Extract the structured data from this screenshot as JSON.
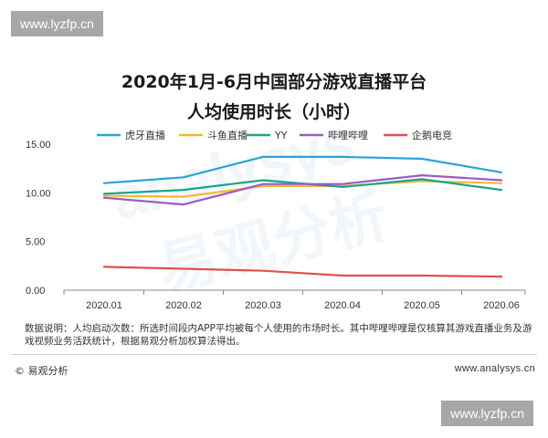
{
  "watermark": {
    "top": "www.lyzfp.cn",
    "bottom": "www.lyzfp.cn"
  },
  "chart_data": {
    "type": "line",
    "title": "2020年1月-6月中国部分游戏直播平台",
    "subtitle": "人均使用时长（小时）",
    "categories": [
      "2020.01",
      "2020.02",
      "2020.03",
      "2020.04",
      "2020.05",
      "2020.06"
    ],
    "y_ticks": [
      "0.00",
      "5.00",
      "10.00",
      "15.00"
    ],
    "ylim": [
      0,
      15
    ],
    "grid": false,
    "legend_position": "top",
    "series": [
      {
        "name": "虎牙直播",
        "color": "#29a3d9",
        "values": [
          11.0,
          11.6,
          13.7,
          13.7,
          13.5,
          12.1
        ]
      },
      {
        "name": "斗鱼直播",
        "color": "#f2b92d",
        "values": [
          9.7,
          9.6,
          10.7,
          10.7,
          11.2,
          11.0
        ]
      },
      {
        "name": "YY",
        "color": "#1aa68a",
        "values": [
          9.9,
          10.3,
          11.3,
          10.6,
          11.4,
          10.3
        ]
      },
      {
        "name": "哔哩哔哩",
        "color": "#9b59c9",
        "values": [
          9.5,
          8.8,
          10.9,
          10.9,
          11.8,
          11.3
        ]
      },
      {
        "name": "企鹅电竞",
        "color": "#e0504a",
        "values": [
          2.4,
          2.2,
          2.0,
          1.5,
          1.5,
          1.4
        ]
      }
    ]
  },
  "note": "数据说明：人均启动次数：所选时间段内APP平均被每个人使用的市场时长。其中哔哩哔哩是仅核算其游戏直播业务及游戏视频业务活跃统计，根据易观分析加权算法得出。",
  "footer": {
    "brand": "© 易观分析",
    "site": "www.analysys.cn"
  },
  "background_watermark": {
    "latin": "analysys",
    "cjk": "易观分析"
  }
}
